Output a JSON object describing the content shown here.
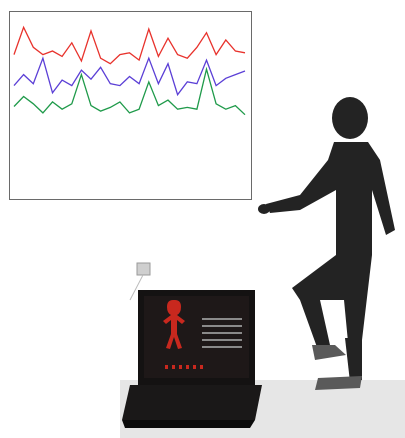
{
  "image": {
    "description_kind": "photo",
    "background_color": "#ffffff"
  },
  "inset_plot": {
    "type": "line",
    "grid": false,
    "series_colors": [
      "#e8322c",
      "#5b3fd6",
      "#1f9a4a"
    ],
    "x": [
      0,
      1,
      2,
      3,
      4,
      5,
      6,
      7,
      8,
      9,
      10,
      11,
      12,
      13,
      14,
      15,
      16,
      17,
      18,
      19,
      20,
      21,
      22,
      23,
      24
    ],
    "series": [
      {
        "color": "#e8322c",
        "values": [
          0.62,
          0.92,
          0.7,
          0.62,
          0.66,
          0.6,
          0.75,
          0.55,
          0.88,
          0.58,
          0.52,
          0.62,
          0.64,
          0.56,
          0.9,
          0.6,
          0.8,
          0.62,
          0.58,
          0.7,
          0.86,
          0.62,
          0.78,
          0.66,
          0.64
        ]
      },
      {
        "color": "#5b3fd6",
        "values": [
          0.28,
          0.4,
          0.3,
          0.58,
          0.2,
          0.34,
          0.28,
          0.45,
          0.35,
          0.48,
          0.3,
          0.28,
          0.38,
          0.3,
          0.58,
          0.3,
          0.52,
          0.18,
          0.32,
          0.3,
          0.56,
          0.28,
          0.36,
          0.4,
          0.44
        ]
      },
      {
        "color": "#1f9a4a",
        "values": [
          0.05,
          0.16,
          0.08,
          -0.02,
          0.1,
          0.02,
          0.08,
          0.4,
          0.06,
          0.0,
          0.04,
          0.1,
          -0.02,
          0.02,
          0.32,
          0.06,
          0.12,
          0.02,
          0.04,
          0.02,
          0.46,
          0.08,
          0.02,
          0.06,
          -0.04
        ]
      }
    ],
    "ylim": [
      -0.9,
      1.0
    ]
  },
  "laptop": {
    "screen_colors": [
      "#1a1414",
      "#c8281e"
    ]
  }
}
